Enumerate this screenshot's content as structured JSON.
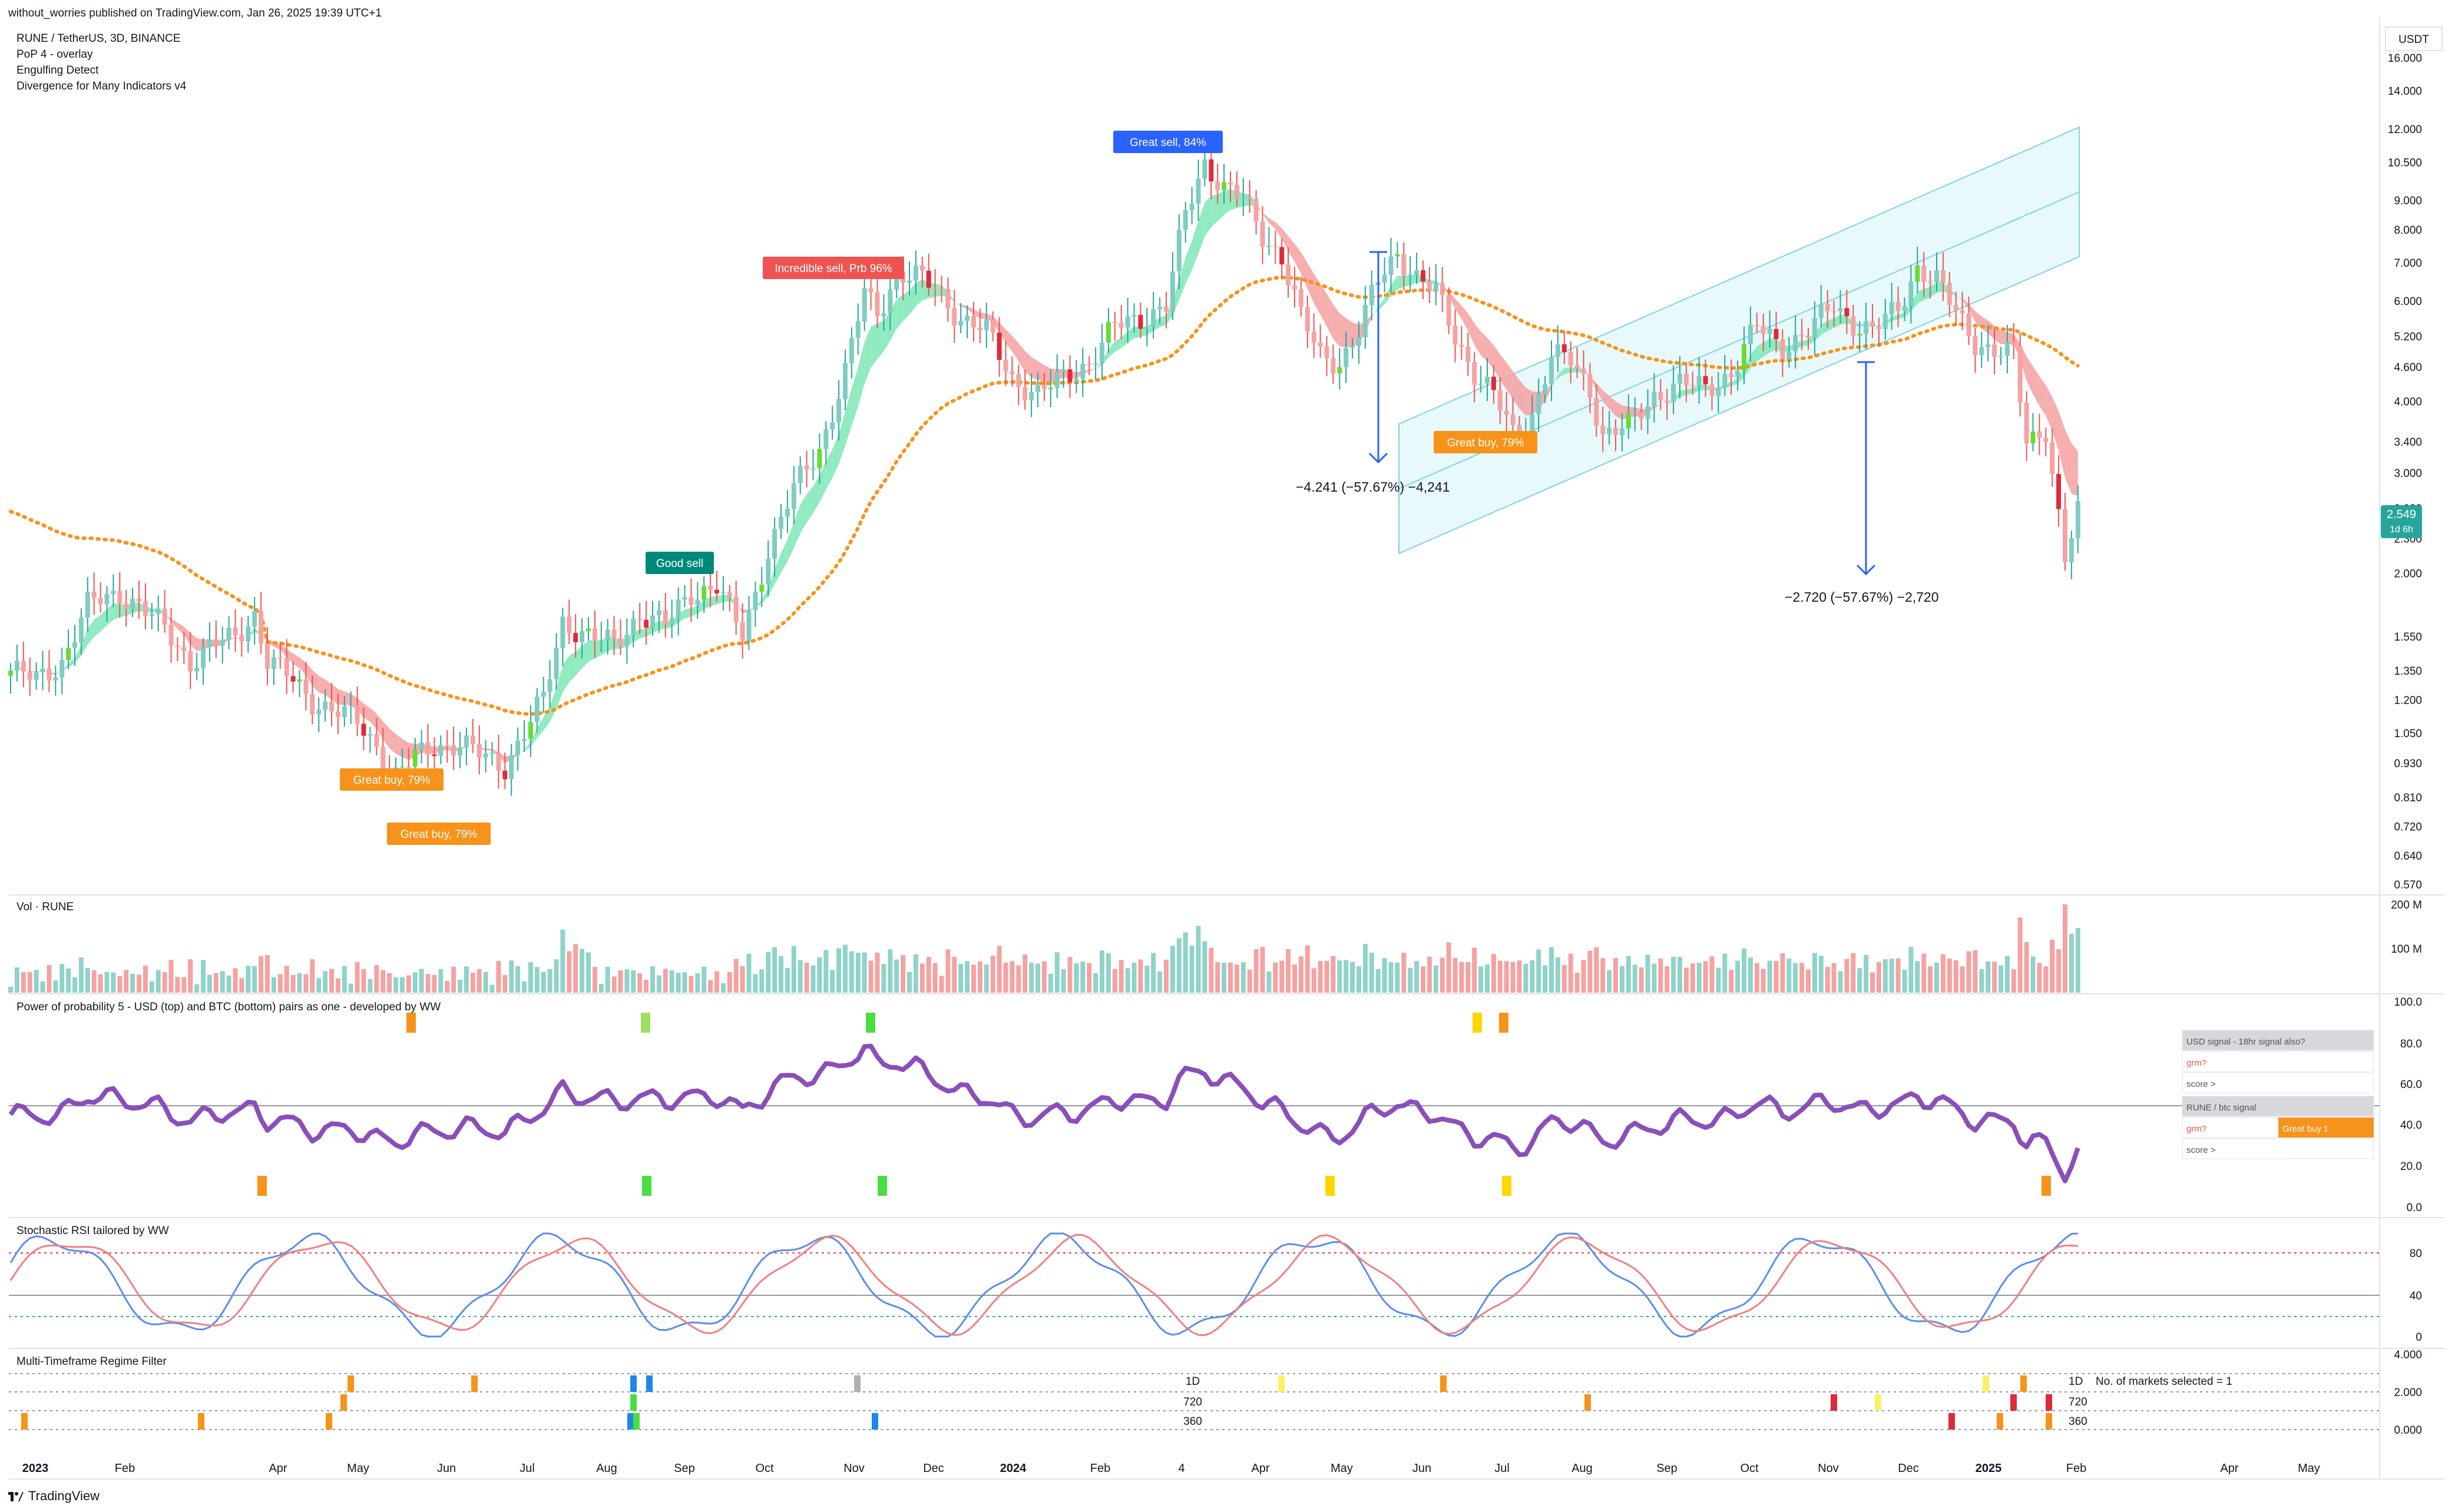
{
  "publish_line": "without_worries published on TradingView.com, Jan 26, 2025 19:39 UTC+1",
  "symbol_line": "RUNE / TetherUS, 3D, BINANCE",
  "indicators": [
    "PoP 4 - overlay",
    "Engulfing Detect",
    "Divergence for Many Indicators v4"
  ],
  "brand": "TradingView",
  "currency_label": "USDT",
  "last_price": "2.549",
  "last_price_sub": "1d 6h",
  "colors": {
    "up": "#26a69a",
    "down": "#ef5350",
    "orange": "#f7931a",
    "blue": "#2962ff",
    "teal_label": "#00897b",
    "ribbon_up": "#7ee8b5",
    "ribbon_down": "#f5a0a0"
  },
  "price_axis": [
    "16.000",
    "14.000",
    "12.000",
    "10.500",
    "9.000",
    "8.000",
    "7.000",
    "6.000",
    "5.200",
    "4.600",
    "4.000",
    "3.400",
    "3.000",
    "2.600",
    "2.300",
    "2.000",
    "1.550",
    "1.350",
    "1.200",
    "1.050",
    "0.930",
    "0.810",
    "0.720",
    "0.640",
    "0.570"
  ],
  "time_axis": [
    {
      "label": "2023",
      "bold": true
    },
    {
      "label": "Feb"
    },
    {
      "label": "Apr"
    },
    {
      "label": "May"
    },
    {
      "label": "Jun"
    },
    {
      "label": "Jul"
    },
    {
      "label": "Aug"
    },
    {
      "label": "Sep"
    },
    {
      "label": "Oct"
    },
    {
      "label": "Nov"
    },
    {
      "label": "Dec"
    },
    {
      "label": "2024",
      "bold": true
    },
    {
      "label": "Feb"
    },
    {
      "label": "4"
    },
    {
      "label": "Apr"
    },
    {
      "label": "May"
    },
    {
      "label": "Jun"
    },
    {
      "label": "Jul"
    },
    {
      "label": "Aug"
    },
    {
      "label": "Sep"
    },
    {
      "label": "Oct"
    },
    {
      "label": "Nov"
    },
    {
      "label": "Dec"
    },
    {
      "label": "2025",
      "bold": true
    },
    {
      "label": "Feb"
    },
    {
      "label": "Apr"
    },
    {
      "label": "May"
    }
  ],
  "signals": [
    {
      "text": "Great sell, 84%",
      "color": "#2962ff"
    },
    {
      "text": "Incredible sell, Prb 96%",
      "color": "#ef5350"
    },
    {
      "text": "Good sell",
      "color": "#00897b"
    },
    {
      "text": "Great buy,  79%",
      "color": "#f7931a"
    },
    {
      "text": "Great buy,  79%",
      "color": "#f7931a"
    },
    {
      "text": "Great buy,  79%",
      "color": "#f7931a"
    }
  ],
  "measurements": [
    "−4.241 (−57.67%) −4,241",
    "−2.720 (−57.67%) −2,720"
  ],
  "panes": {
    "volume": {
      "title": "Vol · RUNE",
      "axis": [
        "200 M",
        "100 M"
      ]
    },
    "pop": {
      "title": "Power of probability 5 - USD (top) and BTC (bottom) pairs as one - developed by WW",
      "axis": [
        "100.0",
        "80.0",
        "60.0",
        "40.0",
        "20.0",
        "0.0"
      ],
      "table": [
        {
          "label": "USD signal - 18hr signal also?",
          "value": ""
        },
        {
          "label": "grm?",
          "value": ""
        },
        {
          "label": "score >",
          "value": ""
        },
        {
          "label": "RUNE / btc signal",
          "value": ""
        },
        {
          "label": "grm?",
          "value": "Great buy 1"
        },
        {
          "label": "score >",
          "value": ""
        }
      ]
    },
    "stoch": {
      "title": "Stochastic RSI tailored by WW",
      "axis": [
        "80",
        "40",
        "0"
      ]
    },
    "mtf": {
      "title": "Multi-Timeframe Regime Filter",
      "axis": [
        "4.000",
        "2.000",
        "0.000"
      ],
      "rows": [
        "1D",
        "720",
        "360"
      ],
      "note": "No. of markets selected = 1"
    }
  },
  "chart_data": {
    "type": "candlestick",
    "scale": "log",
    "ylim": [
      0.55,
      17
    ],
    "x_unit": "3-day bars from Jan 2023 to Jan 2025",
    "price_path": [
      [
        0,
        1.35
      ],
      [
        4,
        1.3
      ],
      [
        8,
        1.4
      ],
      [
        12,
        1.75
      ],
      [
        14,
        1.8
      ],
      [
        17,
        1.85
      ],
      [
        20,
        1.75
      ],
      [
        24,
        1.6
      ],
      [
        28,
        1.4
      ],
      [
        32,
        1.5
      ],
      [
        35,
        1.55
      ],
      [
        38,
        1.7
      ],
      [
        40,
        1.4
      ],
      [
        44,
        1.3
      ],
      [
        47,
        1.2
      ],
      [
        50,
        1.15
      ],
      [
        54,
        1.1
      ],
      [
        57,
        1.0
      ],
      [
        60,
        0.88
      ],
      [
        63,
        0.95
      ],
      [
        66,
        1.0
      ],
      [
        70,
        1.0
      ],
      [
        74,
        0.95
      ],
      [
        77,
        0.92
      ],
      [
        80,
        1.05
      ],
      [
        83,
        1.2
      ],
      [
        86,
        1.65
      ],
      [
        90,
        1.55
      ],
      [
        94,
        1.5
      ],
      [
        98,
        1.7
      ],
      [
        102,
        1.62
      ],
      [
        106,
        1.85
      ],
      [
        110,
        1.9
      ],
      [
        114,
        1.55
      ],
      [
        118,
        2.2
      ],
      [
        122,
        2.8
      ],
      [
        126,
        3.3
      ],
      [
        130,
        4.5
      ],
      [
        133,
        6.2
      ],
      [
        135,
        5.7
      ],
      [
        138,
        6.7
      ],
      [
        141,
        6.6
      ],
      [
        144,
        6.3
      ],
      [
        148,
        5.6
      ],
      [
        152,
        5.3
      ],
      [
        156,
        4.4
      ],
      [
        160,
        4.1
      ],
      [
        164,
        4.4
      ],
      [
        168,
        4.7
      ],
      [
        172,
        5.4
      ],
      [
        176,
        5.6
      ],
      [
        180,
        5.9
      ],
      [
        183,
        8.5
      ],
      [
        186,
        10.5
      ],
      [
        189,
        9.5
      ],
      [
        192,
        9.0
      ],
      [
        195,
        7.8
      ],
      [
        198,
        7.2
      ],
      [
        201,
        5.6
      ],
      [
        204,
        4.8
      ],
      [
        207,
        4.7
      ],
      [
        210,
        5.3
      ],
      [
        213,
        6.5
      ],
      [
        216,
        7.3
      ],
      [
        219,
        6.6
      ],
      [
        222,
        6.2
      ],
      [
        225,
        5.2
      ],
      [
        228,
        4.5
      ],
      [
        231,
        4.1
      ],
      [
        234,
        3.5
      ],
      [
        237,
        3.8
      ],
      [
        240,
        4.8
      ],
      [
        243,
        4.7
      ],
      [
        246,
        4.2
      ],
      [
        248,
        3.5
      ],
      [
        252,
        3.6
      ],
      [
        256,
        4.1
      ],
      [
        260,
        4.3
      ],
      [
        264,
        4.2
      ],
      [
        268,
        4.5
      ],
      [
        272,
        5.4
      ],
      [
        276,
        5.0
      ],
      [
        280,
        5.3
      ],
      [
        284,
        5.9
      ],
      [
        287,
        5.5
      ],
      [
        290,
        5.3
      ],
      [
        294,
        5.8
      ],
      [
        297,
        6.9
      ],
      [
        300,
        6.5
      ],
      [
        303,
        5.7
      ],
      [
        306,
        5.1
      ],
      [
        309,
        4.9
      ],
      [
        312,
        4.8
      ],
      [
        314,
        3.4
      ],
      [
        317,
        3.6
      ],
      [
        320,
        2.1
      ],
      [
        322,
        2.55
      ]
    ],
    "volume_peak": "200 M",
    "annotations": [
      "Great sell, 84%",
      "Incredible sell, Prb 96%",
      "Good sell",
      "Great buy,  79%"
    ]
  }
}
